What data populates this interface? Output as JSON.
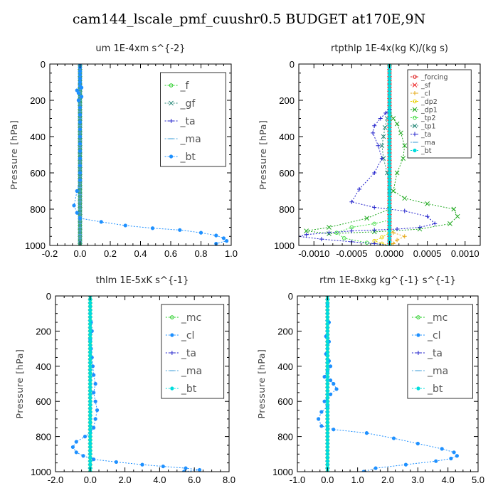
{
  "figure_title": "cam144_lscale_pmf_cuushr0.5  BUDGET at170E,9N",
  "chart_data": [
    {
      "id": "um",
      "type": "line",
      "title": "um   1E-4xm s^{-2}",
      "ylabel": "Pressure [hPa]",
      "xlim": [
        -0.2,
        1.0
      ],
      "ylim": [
        1000,
        0
      ],
      "xticks": [
        -0.2,
        0.0,
        0.2,
        0.4,
        0.6,
        0.8,
        1.0
      ],
      "xtick_labels": [
        "-0.2",
        "0.0",
        "0.2",
        "0.4",
        "0.6",
        "0.8",
        "1.0"
      ],
      "yticks": [
        0,
        200,
        400,
        600,
        800,
        1000
      ],
      "ytick_labels": [
        "0",
        "200",
        "400",
        "600",
        "800",
        "1000"
      ],
      "legend_style": "large",
      "series": [
        {
          "name": "_f",
          "color": "#22cc22",
          "marker": "o",
          "x": [
            0.0,
            0.0
          ],
          "y": [
            0,
            1000
          ]
        },
        {
          "name": "_gf",
          "color": "#2a8a7a",
          "marker": "x",
          "x": [
            0.0,
            0.0
          ],
          "y": [
            0,
            1000
          ]
        },
        {
          "name": "_ta",
          "color": "#2222cc",
          "marker": "+",
          "x": [
            0.0,
            0.0
          ],
          "y": [
            0,
            1000
          ]
        },
        {
          "name": "_ma",
          "color": "#55aadd",
          "marker": "-",
          "x": [
            0.0,
            0.0
          ],
          "y": [
            0,
            1000
          ]
        },
        {
          "name": "_bt",
          "color": "#1e90ff",
          "marker": "*",
          "x": [
            0.0,
            0.0,
            0.0,
            0.0,
            0.0,
            0.0,
            0.0,
            0.01,
            -0.02,
            -0.01,
            0.01,
            -0.01,
            0.0,
            0.0,
            0.0,
            0.0,
            0.0,
            0.0,
            0.0,
            0.0,
            0.0,
            0.0,
            0.0,
            -0.02,
            -0.04,
            -0.02,
            0.0,
            0.14,
            0.3,
            0.48,
            0.66,
            0.8,
            0.9,
            0.95,
            0.97,
            0.9
          ],
          "y": [
            0,
            20,
            40,
            60,
            80,
            100,
            120,
            130,
            145,
            160,
            180,
            200,
            240,
            280,
            320,
            360,
            400,
            440,
            480,
            520,
            560,
            600,
            640,
            700,
            780,
            820,
            850,
            870,
            890,
            905,
            915,
            930,
            945,
            960,
            975,
            990
          ]
        }
      ]
    },
    {
      "id": "rtpthlp",
      "type": "line",
      "title": "rtpthlp   1E-4x(kg K)/(kg s)",
      "ylabel": "Pressure [hPa]",
      "xlim": [
        -0.0012,
        0.0012
      ],
      "ylim": [
        1000,
        0
      ],
      "xticks": [
        -0.001,
        -0.0005,
        0.0,
        0.0005,
        0.001
      ],
      "xtick_labels": [
        "-0.0010",
        "-0.0005",
        "0.0000",
        "0.0005",
        "0.0010"
      ],
      "yticks": [
        0,
        200,
        400,
        600,
        800,
        1000
      ],
      "ytick_labels": [
        "0",
        "200",
        "400",
        "600",
        "800",
        "1000"
      ],
      "legend_style": "small",
      "series": [
        {
          "name": "_forcing",
          "color": "#dd2222",
          "marker": "o",
          "x": [
            0.0,
            0.0
          ],
          "y": [
            0,
            1000
          ]
        },
        {
          "name": "_sf",
          "color": "#ee3333",
          "marker": "x",
          "x": [
            0.0,
            0.0
          ],
          "y": [
            0,
            1000
          ]
        },
        {
          "name": "_cl",
          "color": "#e6a817",
          "marker": "+",
          "x": [
            0.0,
            0.0,
            5e-05,
            0.0002,
            0.0001,
            5e-05,
            0.0
          ],
          "y": [
            0,
            900,
            930,
            950,
            970,
            990,
            1000
          ]
        },
        {
          "name": "_dp2",
          "color": "#e8d100",
          "marker": "o",
          "x": [
            0.0,
            0.0,
            -0.0001,
            -0.0002,
            -0.0001,
            0.0
          ],
          "y": [
            0,
            930,
            955,
            975,
            990,
            1000
          ]
        },
        {
          "name": "_dp1",
          "color": "#22aa22",
          "marker": "x",
          "x": [
            0.0,
            0.0,
            5e-05,
            0.0001,
            0.00015,
            0.0002,
            0.00018,
            0.0001,
            5e-05,
            0.0002,
            0.0005,
            0.00085,
            0.0009,
            0.0008,
            0.0004,
            -0.0002,
            -0.0008,
            -0.0011,
            -0.0008,
            -0.0003,
            0.0
          ],
          "y": [
            0,
            260,
            300,
            330,
            380,
            450,
            520,
            600,
            700,
            740,
            770,
            800,
            840,
            880,
            910,
            925,
            935,
            920,
            900,
            850,
            800
          ]
        },
        {
          "name": "_tp2",
          "color": "#44dd44",
          "marker": "o",
          "x": [
            0.0,
            0.0,
            -0.0002,
            -0.0005,
            -0.0007,
            -0.0006,
            -0.0003,
            0.0
          ],
          "y": [
            0,
            860,
            880,
            900,
            930,
            960,
            985,
            1000
          ]
        },
        {
          "name": "_tp1",
          "color": "#2a8a7a",
          "marker": "x",
          "x": [
            0.0,
            0.0,
            -3e-05,
            -6e-05,
            -8e-05,
            -0.0001,
            -8e-05,
            -3e-05,
            0.0
          ],
          "y": [
            0,
            260,
            300,
            350,
            400,
            450,
            520,
            600,
            700
          ]
        },
        {
          "name": "_ta",
          "color": "#2222cc",
          "marker": "+",
          "x": [
            0.0,
            0.0,
            -5e-05,
            -0.00012,
            -0.0002,
            -0.00022,
            -0.00015,
            -0.0001,
            -0.0002,
            -0.0004,
            -0.0005,
            -0.0002,
            0.0002,
            0.0005,
            0.0006,
            0.0004,
            0.0001,
            -0.0002,
            -0.0005,
            -0.0008,
            -0.0011,
            -0.0012,
            -0.0009,
            -0.0005,
            -0.0002,
            0.0
          ],
          "y": [
            0,
            250,
            270,
            300,
            340,
            380,
            450,
            520,
            600,
            690,
            760,
            790,
            810,
            840,
            880,
            900,
            910,
            915,
            920,
            930,
            940,
            950,
            965,
            980,
            990,
            1000
          ]
        },
        {
          "name": "_ma",
          "color": "#55aadd",
          "marker": "-",
          "x": [
            0.0,
            0.0
          ],
          "y": [
            0,
            1000
          ]
        },
        {
          "name": "_bt",
          "color": "#00dddd",
          "marker": "*",
          "x": [
            0.0,
            0.0
          ],
          "y": [
            0,
            1000
          ]
        }
      ]
    },
    {
      "id": "thlm",
      "type": "line",
      "title": "thlm   1E-5xK s^{-1}",
      "ylabel": "Pressure [hPa]",
      "xlim": [
        -2.0,
        8.0
      ],
      "ylim": [
        1000,
        0
      ],
      "xticks": [
        -2.0,
        0.0,
        2.0,
        4.0,
        6.0,
        8.0
      ],
      "xtick_labels": [
        "-2.0",
        "0.0",
        "2.0",
        "4.0",
        "6.0",
        "8.0"
      ],
      "yticks": [
        0,
        200,
        400,
        600,
        800,
        1000
      ],
      "ytick_labels": [
        "0",
        "200",
        "400",
        "600",
        "800",
        "1000"
      ],
      "legend_style": "large",
      "series": [
        {
          "name": "_mc",
          "color": "#22cc22",
          "marker": "o",
          "x": [
            0.0,
            0.0
          ],
          "y": [
            0,
            1000
          ]
        },
        {
          "name": "_cl",
          "color": "#1e90ff",
          "marker": "*",
          "x": [
            0.0,
            0.0,
            0.05,
            0.1,
            0.0,
            0.05,
            0.1,
            0.15,
            0.2,
            0.3,
            0.2,
            0.3,
            0.4,
            0.3,
            0.2,
            0.0,
            -0.3,
            -0.8,
            -1.0,
            -0.8,
            -0.4,
            0.2,
            1.5,
            3.0,
            4.2,
            5.5,
            6.3,
            5.4
          ],
          "y": [
            0,
            100,
            150,
            200,
            250,
            300,
            350,
            400,
            450,
            500,
            550,
            600,
            650,
            700,
            750,
            780,
            800,
            830,
            860,
            890,
            910,
            930,
            945,
            960,
            970,
            980,
            990,
            1000
          ]
        },
        {
          "name": "_ta",
          "color": "#2222cc",
          "marker": "+",
          "x": [
            0.0,
            0.0
          ],
          "y": [
            0,
            1000
          ]
        },
        {
          "name": "_ma",
          "color": "#55aadd",
          "marker": "-",
          "x": [
            0.0,
            0.0
          ],
          "y": [
            0,
            1000
          ]
        },
        {
          "name": "_bt",
          "color": "#00dddd",
          "marker": "*",
          "x": [
            0.0,
            0.0
          ],
          "y": [
            0,
            1000
          ]
        }
      ]
    },
    {
      "id": "rtm",
      "type": "line",
      "title": "rtm   1E-8xkg kg^{-1} s^{-1}",
      "ylabel": "Pressure [hPa]",
      "xlim": [
        -1.0,
        5.0
      ],
      "ylim": [
        1000,
        0
      ],
      "xticks": [
        -1.0,
        0.0,
        1.0,
        2.0,
        3.0,
        4.0,
        5.0
      ],
      "xtick_labels": [
        "-1.0",
        "0.0",
        "1.0",
        "2.0",
        "3.0",
        "4.0",
        "5.0"
      ],
      "yticks": [
        0,
        200,
        400,
        600,
        800,
        1000
      ],
      "ytick_labels": [
        "0",
        "200",
        "400",
        "600",
        "800",
        "1000"
      ],
      "legend_style": "large",
      "series": [
        {
          "name": "_mc",
          "color": "#22cc22",
          "marker": "o",
          "x": [
            0.0,
            0.0
          ],
          "y": [
            0,
            1000
          ]
        },
        {
          "name": "_cl",
          "color": "#1e90ff",
          "marker": "*",
          "x": [
            0.0,
            0.0,
            0.0,
            0.05,
            0.0,
            -0.05,
            0.05,
            0.0,
            -0.05,
            0.05,
            0.1,
            0.0,
            -0.1,
            0.1,
            0.2,
            0.3,
            0.1,
            -0.1,
            0.0,
            -0.2,
            -0.3,
            -0.2,
            0.2,
            1.3,
            2.2,
            3.0,
            3.8,
            4.2,
            4.3,
            4.1,
            3.6,
            2.6,
            1.6,
            1.2
          ],
          "y": [
            0,
            50,
            100,
            150,
            200,
            230,
            260,
            300,
            330,
            370,
            400,
            430,
            460,
            480,
            500,
            530,
            560,
            600,
            630,
            660,
            700,
            740,
            760,
            780,
            810,
            840,
            870,
            890,
            910,
            925,
            940,
            960,
            980,
            1000
          ]
        },
        {
          "name": "_ta",
          "color": "#2222cc",
          "marker": "+",
          "x": [
            0.0,
            0.0
          ],
          "y": [
            0,
            1000
          ]
        },
        {
          "name": "_ma",
          "color": "#55aadd",
          "marker": "-",
          "x": [
            0.0,
            0.0
          ],
          "y": [
            0,
            1000
          ]
        },
        {
          "name": "_bt",
          "color": "#00dddd",
          "marker": "*",
          "x": [
            0.0,
            0.0
          ],
          "y": [
            0,
            1000
          ]
        }
      ]
    }
  ]
}
